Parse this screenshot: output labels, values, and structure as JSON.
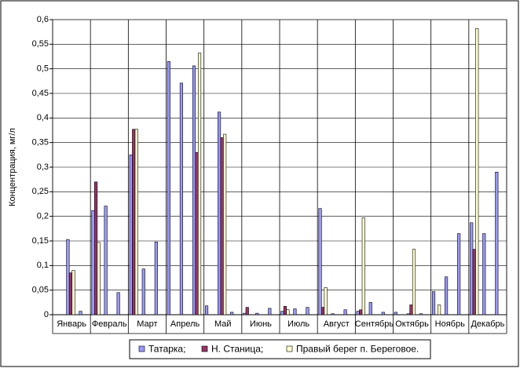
{
  "chart_data": {
    "type": "bar",
    "ylabel": "Концентрация, мг/л",
    "groups": [
      "Январь",
      "Февраль",
      "Март",
      "Апрель",
      "Май",
      "Июнь",
      "Июль",
      "Август",
      "Сентябрь",
      "Октябрь",
      "Ноябрь",
      "Декабрь"
    ],
    "categories": [
      null,
      null,
      null,
      null,
      null,
      null,
      null,
      null,
      null,
      null,
      null,
      null,
      null,
      null,
      null,
      null,
      null,
      null,
      null,
      null,
      null,
      null,
      null,
      null,
      null,
      null,
      null,
      null,
      null,
      null,
      null,
      null,
      null,
      null,
      null,
      null
    ],
    "series": [
      {
        "name": "Татарка;",
        "color": "#9999ff",
        "values": [
          null,
          0.153,
          0.007,
          0.212,
          0.221,
          0.045,
          0.325,
          0.093,
          0.148,
          0.515,
          0.471,
          0.506,
          0.018,
          0.412,
          0.005,
          0.003,
          0.003,
          0.013,
          0.007,
          0.012,
          0.015,
          0.216,
          0.002,
          0.01,
          0.007,
          0.025,
          0.005,
          0.005,
          0.002,
          0.002,
          0.047,
          0.077,
          0.165,
          0.187,
          0.165,
          0.29
        ]
      },
      {
        "name": "Н. Станица;",
        "color": "#993366",
        "values": [
          null,
          0.085,
          null,
          0.27,
          null,
          null,
          0.377,
          null,
          null,
          null,
          null,
          0.33,
          null,
          0.36,
          null,
          0.015,
          null,
          null,
          0.017,
          null,
          null,
          0.015,
          null,
          null,
          0.01,
          null,
          null,
          null,
          0.02,
          null,
          null,
          null,
          null,
          0.133,
          null,
          null
        ]
      },
      {
        "name": "Правый берег п. Береговое.",
        "color": "#ffffcc",
        "values": [
          null,
          0.09,
          null,
          0.147,
          null,
          null,
          0.377,
          null,
          null,
          null,
          null,
          0.532,
          null,
          0.367,
          null,
          null,
          null,
          null,
          0.01,
          null,
          null,
          0.055,
          null,
          null,
          0.197,
          null,
          null,
          null,
          0.133,
          null,
          0.02,
          null,
          null,
          0.582,
          null,
          null
        ]
      }
    ],
    "ylim": [
      0,
      0.6
    ],
    "yticks": [
      0,
      {
        "value": 0.05,
        "label": "0,05"
      },
      {
        "value": 0.1,
        "label": "0,1"
      },
      {
        "value": 0.15,
        "label": "0,15"
      },
      {
        "value": 0.2,
        "label": "0,2"
      },
      {
        "value": 0.25,
        "label": "0,25"
      },
      {
        "value": 0.3,
        "label": "0,3"
      },
      {
        "value": 0.35,
        "label": "0,35"
      },
      {
        "value": 0.4,
        "label": "0,4"
      },
      {
        "value": 0.45,
        "label": "0,45"
      },
      {
        "value": 0.5,
        "label": "0,5"
      },
      {
        "value": 0.55,
        "label": "0,55"
      },
      {
        "value": 0.6,
        "label": "0,6"
      }
    ],
    "grid": true
  }
}
